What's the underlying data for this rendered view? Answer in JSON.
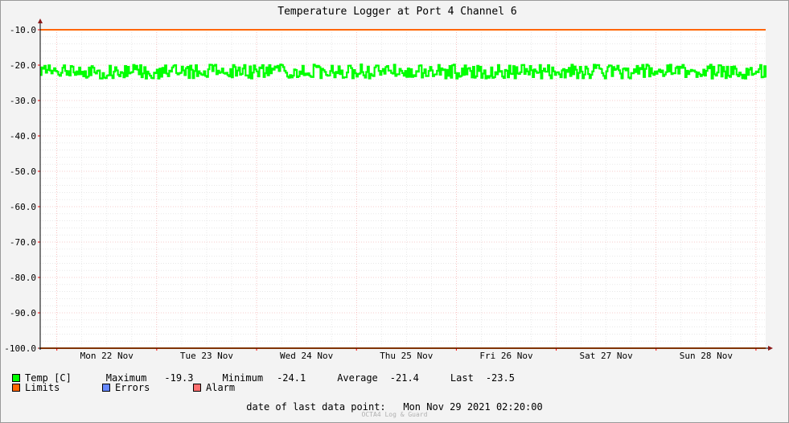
{
  "chart_data": {
    "type": "line",
    "title": "Temperature Logger at Port 4 Channel 6",
    "y_ticks": [
      "-10.0",
      "-20.0",
      "-30.0",
      "-40.0",
      "-50.0",
      "-60.0",
      "-70.0",
      "-80.0",
      "-90.0",
      "-100.0"
    ],
    "ylim": [
      -100,
      -10
    ],
    "x_labels": [
      "Mon 22 Nov",
      "Tue 23 Nov",
      "Wed 24 Nov",
      "Thu 25 Nov",
      "Fri 26 Nov",
      "Sat 27 Nov",
      "Sun 28 Nov"
    ],
    "x_range": [
      "2021-11-21 20:00",
      "2021-11-29 02:20"
    ],
    "series": [
      {
        "name": "Temp [C]",
        "color": "#00ff00",
        "sample_interval_minutes": 20,
        "range_low": -23.8,
        "range_high": -19.8,
        "maximum": "-19.3",
        "minimum": "-24.1",
        "average": "-21.4",
        "last": "-23.5"
      },
      {
        "name": "Limits",
        "color": "#ff6600",
        "values": [
          -10,
          -100
        ]
      },
      {
        "name": "Errors",
        "color": "#6688ff"
      },
      {
        "name": "Alarm",
        "color": "#ff7070"
      }
    ],
    "grid": true
  },
  "legend": {
    "temp_label": "Temp [C]",
    "maximum_label": "Maximum",
    "maximum_value": "-19.3",
    "minimum_label": "Minimum",
    "minimum_value": "-24.1",
    "average_label": "Average",
    "average_value": "-21.4",
    "last_label": "Last",
    "last_value": "-23.5",
    "limits_label": "Limits",
    "errors_label": "Errors",
    "alarm_label": "Alarm",
    "colors": {
      "temp": "#00ff00",
      "limits": "#ff6600",
      "errors": "#6688ff",
      "alarm": "#ff7070"
    }
  },
  "footer": {
    "last_point_label": "date of last data point:",
    "last_point_value": "Mon Nov 29 2021 02:20:00",
    "watermark": "OCTA4 Log & Guard"
  }
}
